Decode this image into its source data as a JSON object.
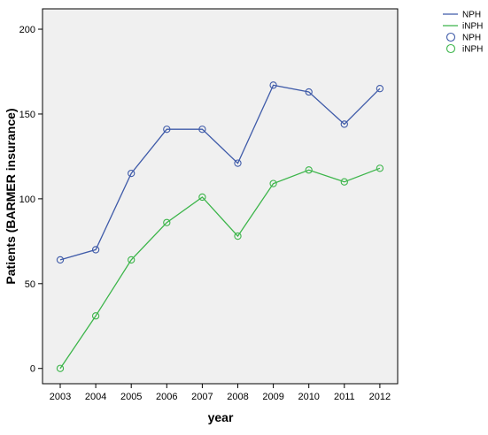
{
  "chart_data": {
    "type": "line",
    "title": "",
    "xlabel": "year",
    "ylabel": "Patients (BARMER insurance)",
    "categories": [
      "2003",
      "2004",
      "2005",
      "2006",
      "2007",
      "2008",
      "2009",
      "2010",
      "2011",
      "2012"
    ],
    "series": [
      {
        "name": "NPH",
        "color": "#3f5ba9",
        "marker": "circle",
        "values": [
          64,
          70,
          115,
          141,
          141,
          121,
          167,
          163,
          144,
          165
        ]
      },
      {
        "name": "iNPH",
        "color": "#3cb54a",
        "marker": "circle",
        "values": [
          0,
          31,
          64,
          86,
          101,
          78,
          109,
          117,
          110,
          118
        ]
      }
    ],
    "yticks": [
      0,
      50,
      100,
      150,
      200
    ],
    "ylim": [
      -9,
      212
    ],
    "grid": false,
    "plot_background": "#f0f0f0",
    "legend": {
      "position": "top-right",
      "entries": [
        {
          "label": "NPH",
          "kind": "line",
          "series": 0
        },
        {
          "label": "iNPH",
          "kind": "line",
          "series": 1
        },
        {
          "label": "NPH",
          "kind": "marker",
          "series": 0
        },
        {
          "label": "iNPH",
          "kind": "marker",
          "series": 1
        }
      ]
    }
  }
}
